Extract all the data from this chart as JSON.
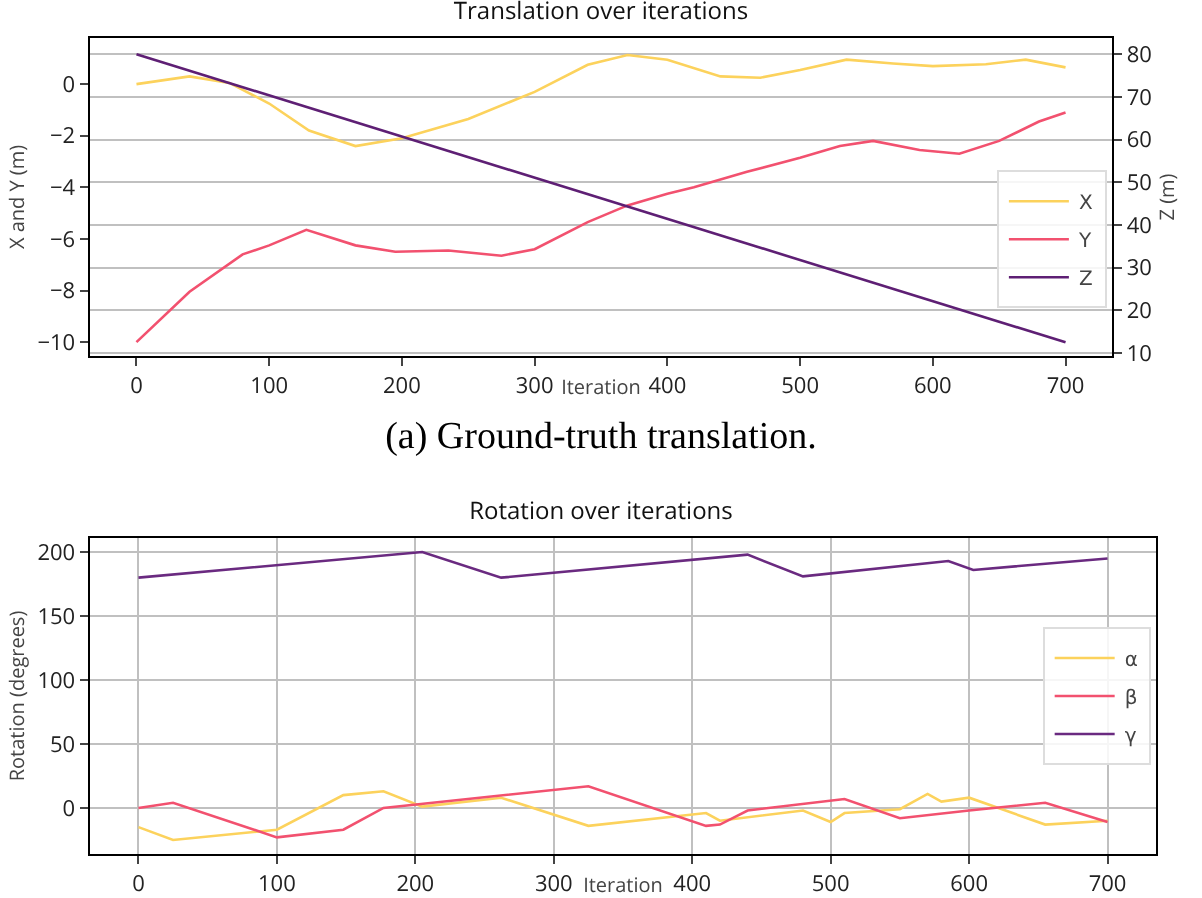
{
  "chart_data": [
    {
      "type": "line",
      "title": "Translation over iterations",
      "xlabel": "Iteration",
      "ylabel": "X and Y (m)",
      "y2label": "Z (m)",
      "annotations": [
        "(a) Ground-truth translation."
      ],
      "xlim": [
        -35,
        735
      ],
      "xticks": [
        0,
        100,
        200,
        300,
        400,
        500,
        600,
        700
      ],
      "ylim": [
        -10.54,
        1.79
      ],
      "yticks": [
        {
          "value": 0,
          "label": "0"
        },
        {
          "value": -2,
          "label": "−2"
        },
        {
          "value": -4,
          "label": "−4"
        },
        {
          "value": -6,
          "label": "−6"
        },
        {
          "value": -8,
          "label": "−8"
        },
        {
          "value": -10,
          "label": "−10"
        }
      ],
      "y2lim": [
        9.3,
        83.8
      ],
      "y2ticks": [
        10,
        20,
        30,
        40,
        50,
        60,
        70,
        80
      ],
      "grid": "y",
      "legend": "bottom right",
      "series": [
        {
          "name": "X",
          "color": "#fcd25c",
          "x": [
            0,
            40,
            70,
            100,
            130,
            165,
            200,
            250,
            300,
            340,
            370,
            400,
            440,
            470,
            500,
            535,
            570,
            600,
            640,
            670,
            700
          ],
          "values": [
            0,
            0.3,
            0.05,
            -0.75,
            -1.8,
            -2.4,
            -2.1,
            -1.35,
            -0.3,
            0.75,
            1.13,
            0.95,
            0.3,
            0.25,
            0.55,
            0.95,
            0.8,
            0.7,
            0.77,
            0.95,
            0.65
          ]
        },
        {
          "name": "Y",
          "color": "#f2516f",
          "x": [
            0,
            40,
            80,
            100,
            128,
            165,
            195,
            235,
            275,
            300,
            340,
            370,
            400,
            420,
            460,
            500,
            530,
            555,
            590,
            620,
            650,
            680,
            700
          ],
          "values": [
            -10,
            -8.05,
            -6.6,
            -6.25,
            -5.65,
            -6.25,
            -6.5,
            -6.45,
            -6.65,
            -6.4,
            -5.35,
            -4.7,
            -4.25,
            -4.0,
            -3.4,
            -2.85,
            -2.4,
            -2.2,
            -2.55,
            -2.7,
            -2.2,
            -1.45,
            -1.1
          ]
        },
        {
          "name": "Z",
          "color": "#5e1f74",
          "axis": "y2",
          "x": [
            0,
            700
          ],
          "values": [
            80,
            12.5
          ]
        }
      ]
    },
    {
      "type": "line",
      "title": "Rotation over iterations",
      "xlabel": "Iteration",
      "ylabel": "Rotation (degrees)",
      "xlim": [
        -35,
        735
      ],
      "xticks": [
        0,
        100,
        200,
        300,
        400,
        500,
        600,
        700
      ],
      "ylim": [
        -36,
        211
      ],
      "yticks": [
        0,
        50,
        100,
        150,
        200
      ],
      "grid": true,
      "legend": "right",
      "series": [
        {
          "name": "α",
          "color": "#fcd25c",
          "x": [
            0,
            25,
            100,
            148,
            177,
            205,
            262,
            325,
            410,
            420,
            480,
            500,
            510,
            550,
            570,
            580,
            600,
            655,
            700
          ],
          "values": [
            -15,
            -25,
            -17,
            10,
            13,
            1,
            8,
            -14,
            -4,
            -10,
            -2,
            -11,
            -4,
            -1,
            11,
            5,
            8,
            -13,
            -10
          ]
        },
        {
          "name": "β",
          "color": "#f2516f",
          "x": [
            0,
            25,
            100,
            148,
            177,
            325,
            410,
            420,
            440,
            510,
            550,
            600,
            655,
            700
          ],
          "values": [
            0,
            4,
            -23,
            -17,
            0,
            17,
            -14,
            -13,
            -2,
            7,
            -8,
            -2,
            4,
            -11
          ]
        },
        {
          "name": "γ",
          "color": "#6a2a80",
          "x": [
            0,
            205,
            262,
            440,
            480,
            585,
            603,
            700
          ],
          "values": [
            180,
            200,
            180,
            198,
            181,
            193,
            186,
            195
          ]
        }
      ]
    }
  ]
}
